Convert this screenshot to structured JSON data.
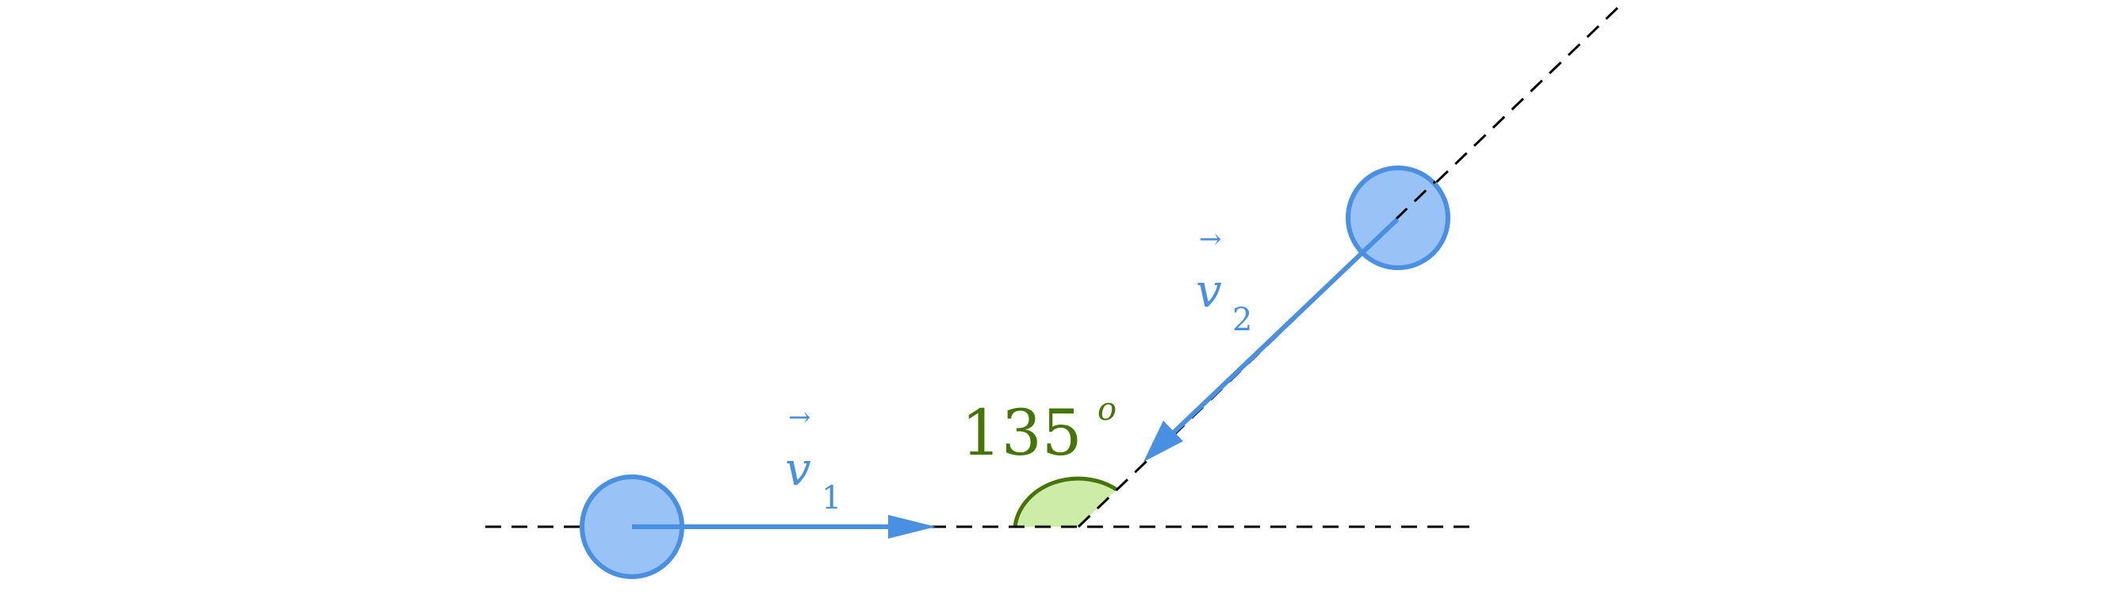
{
  "colors": {
    "vector": "#4a90e2",
    "ball_fill": "#99c2f7",
    "angle_stroke": "#457605",
    "angle_fill": "#cdeca8",
    "guide": "#000000"
  },
  "labels": {
    "v1": {
      "symbol": "v",
      "arrow": "→",
      "subscript": "1"
    },
    "v2": {
      "symbol": "v",
      "arrow": "→",
      "subscript": "2"
    },
    "angle": {
      "value": "135",
      "degree": "o"
    }
  }
}
